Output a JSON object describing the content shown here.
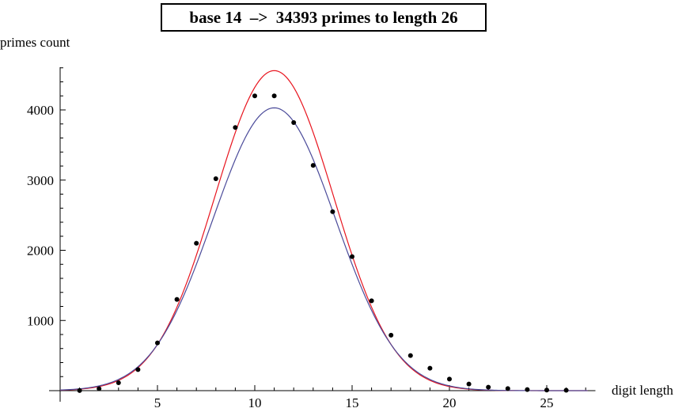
{
  "chart_data": {
    "type": "scatter",
    "title": "base 14  –>  34393 primes to length 26",
    "xlabel": "digit length",
    "ylabel": "primes count",
    "xlim": [
      -1,
      27.5
    ],
    "ylim": [
      0,
      4700
    ],
    "x_ticks": [
      5,
      10,
      15,
      20,
      25
    ],
    "y_ticks": [
      1000,
      2000,
      3000,
      4000
    ],
    "grid": false,
    "series": [
      {
        "kind": "points",
        "color": "#000000",
        "x": [
          1,
          2,
          3,
          4,
          5,
          6,
          7,
          8,
          9,
          10,
          11,
          12,
          13,
          14,
          15,
          16,
          17,
          18,
          19,
          20,
          21,
          22,
          23,
          24,
          25,
          26
        ],
        "y": [
          2,
          28,
          112,
          300,
          680,
          1300,
          2100,
          3020,
          3750,
          4200,
          4200,
          3820,
          3210,
          2550,
          1910,
          1280,
          790,
          500,
          320,
          165,
          95,
          50,
          30,
          15,
          8,
          5
        ]
      },
      {
        "kind": "curve",
        "color": "#e8141e",
        "peak_x": 11,
        "peak_y": 4560,
        "sigma": 3.05
      },
      {
        "kind": "curve",
        "color": "#4b4b9a",
        "peak_x": 11,
        "peak_y": 4030,
        "sigma": 3.15
      }
    ]
  }
}
